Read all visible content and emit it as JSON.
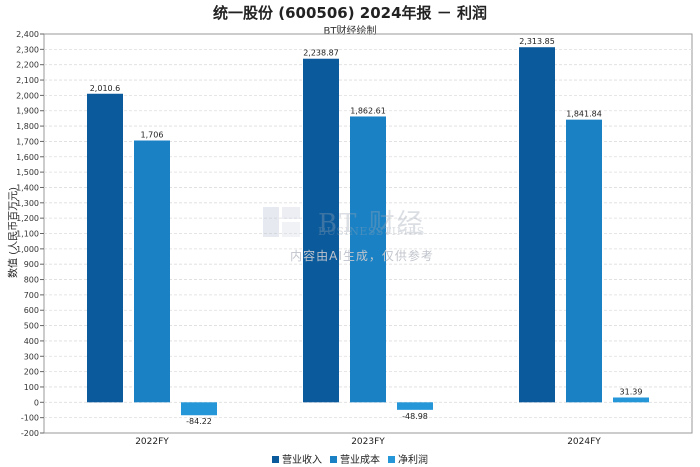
{
  "chart_data": {
    "type": "bar",
    "title": "统一股份 (600506) 2024年报 － 利润",
    "subtitle": "BT财经绘制",
    "xlabel": "",
    "ylabel": "数值 (人民币百万元)",
    "categories": [
      "2022FY",
      "2023FY",
      "2024FY"
    ],
    "series": [
      {
        "name": "营业收入",
        "color": "#0a5a9c",
        "values": [
          2010.6,
          2238.87,
          2313.85
        ],
        "labels": [
          "2,010.6",
          "2,238.87",
          "2,313.85"
        ]
      },
      {
        "name": "营业成本",
        "color": "#1a82c4",
        "values": [
          1706,
          1862.61,
          1841.84
        ],
        "labels": [
          "1,706",
          "1,862.61",
          "1,841.84"
        ]
      },
      {
        "name": "净利润",
        "color": "#2596d8",
        "values": [
          -84.22,
          -48.98,
          31.39
        ],
        "labels": [
          "-84.22",
          "-48.98",
          "31.39"
        ]
      }
    ],
    "ylim": [
      -200,
      2400
    ],
    "ytick_step": 100,
    "grid": true,
    "legend_position": "bottom"
  },
  "watermark": {
    "brand": "BT 财经",
    "sub": "BUSINESSTIMES",
    "note": "内容由AI生成，仅供参考"
  }
}
